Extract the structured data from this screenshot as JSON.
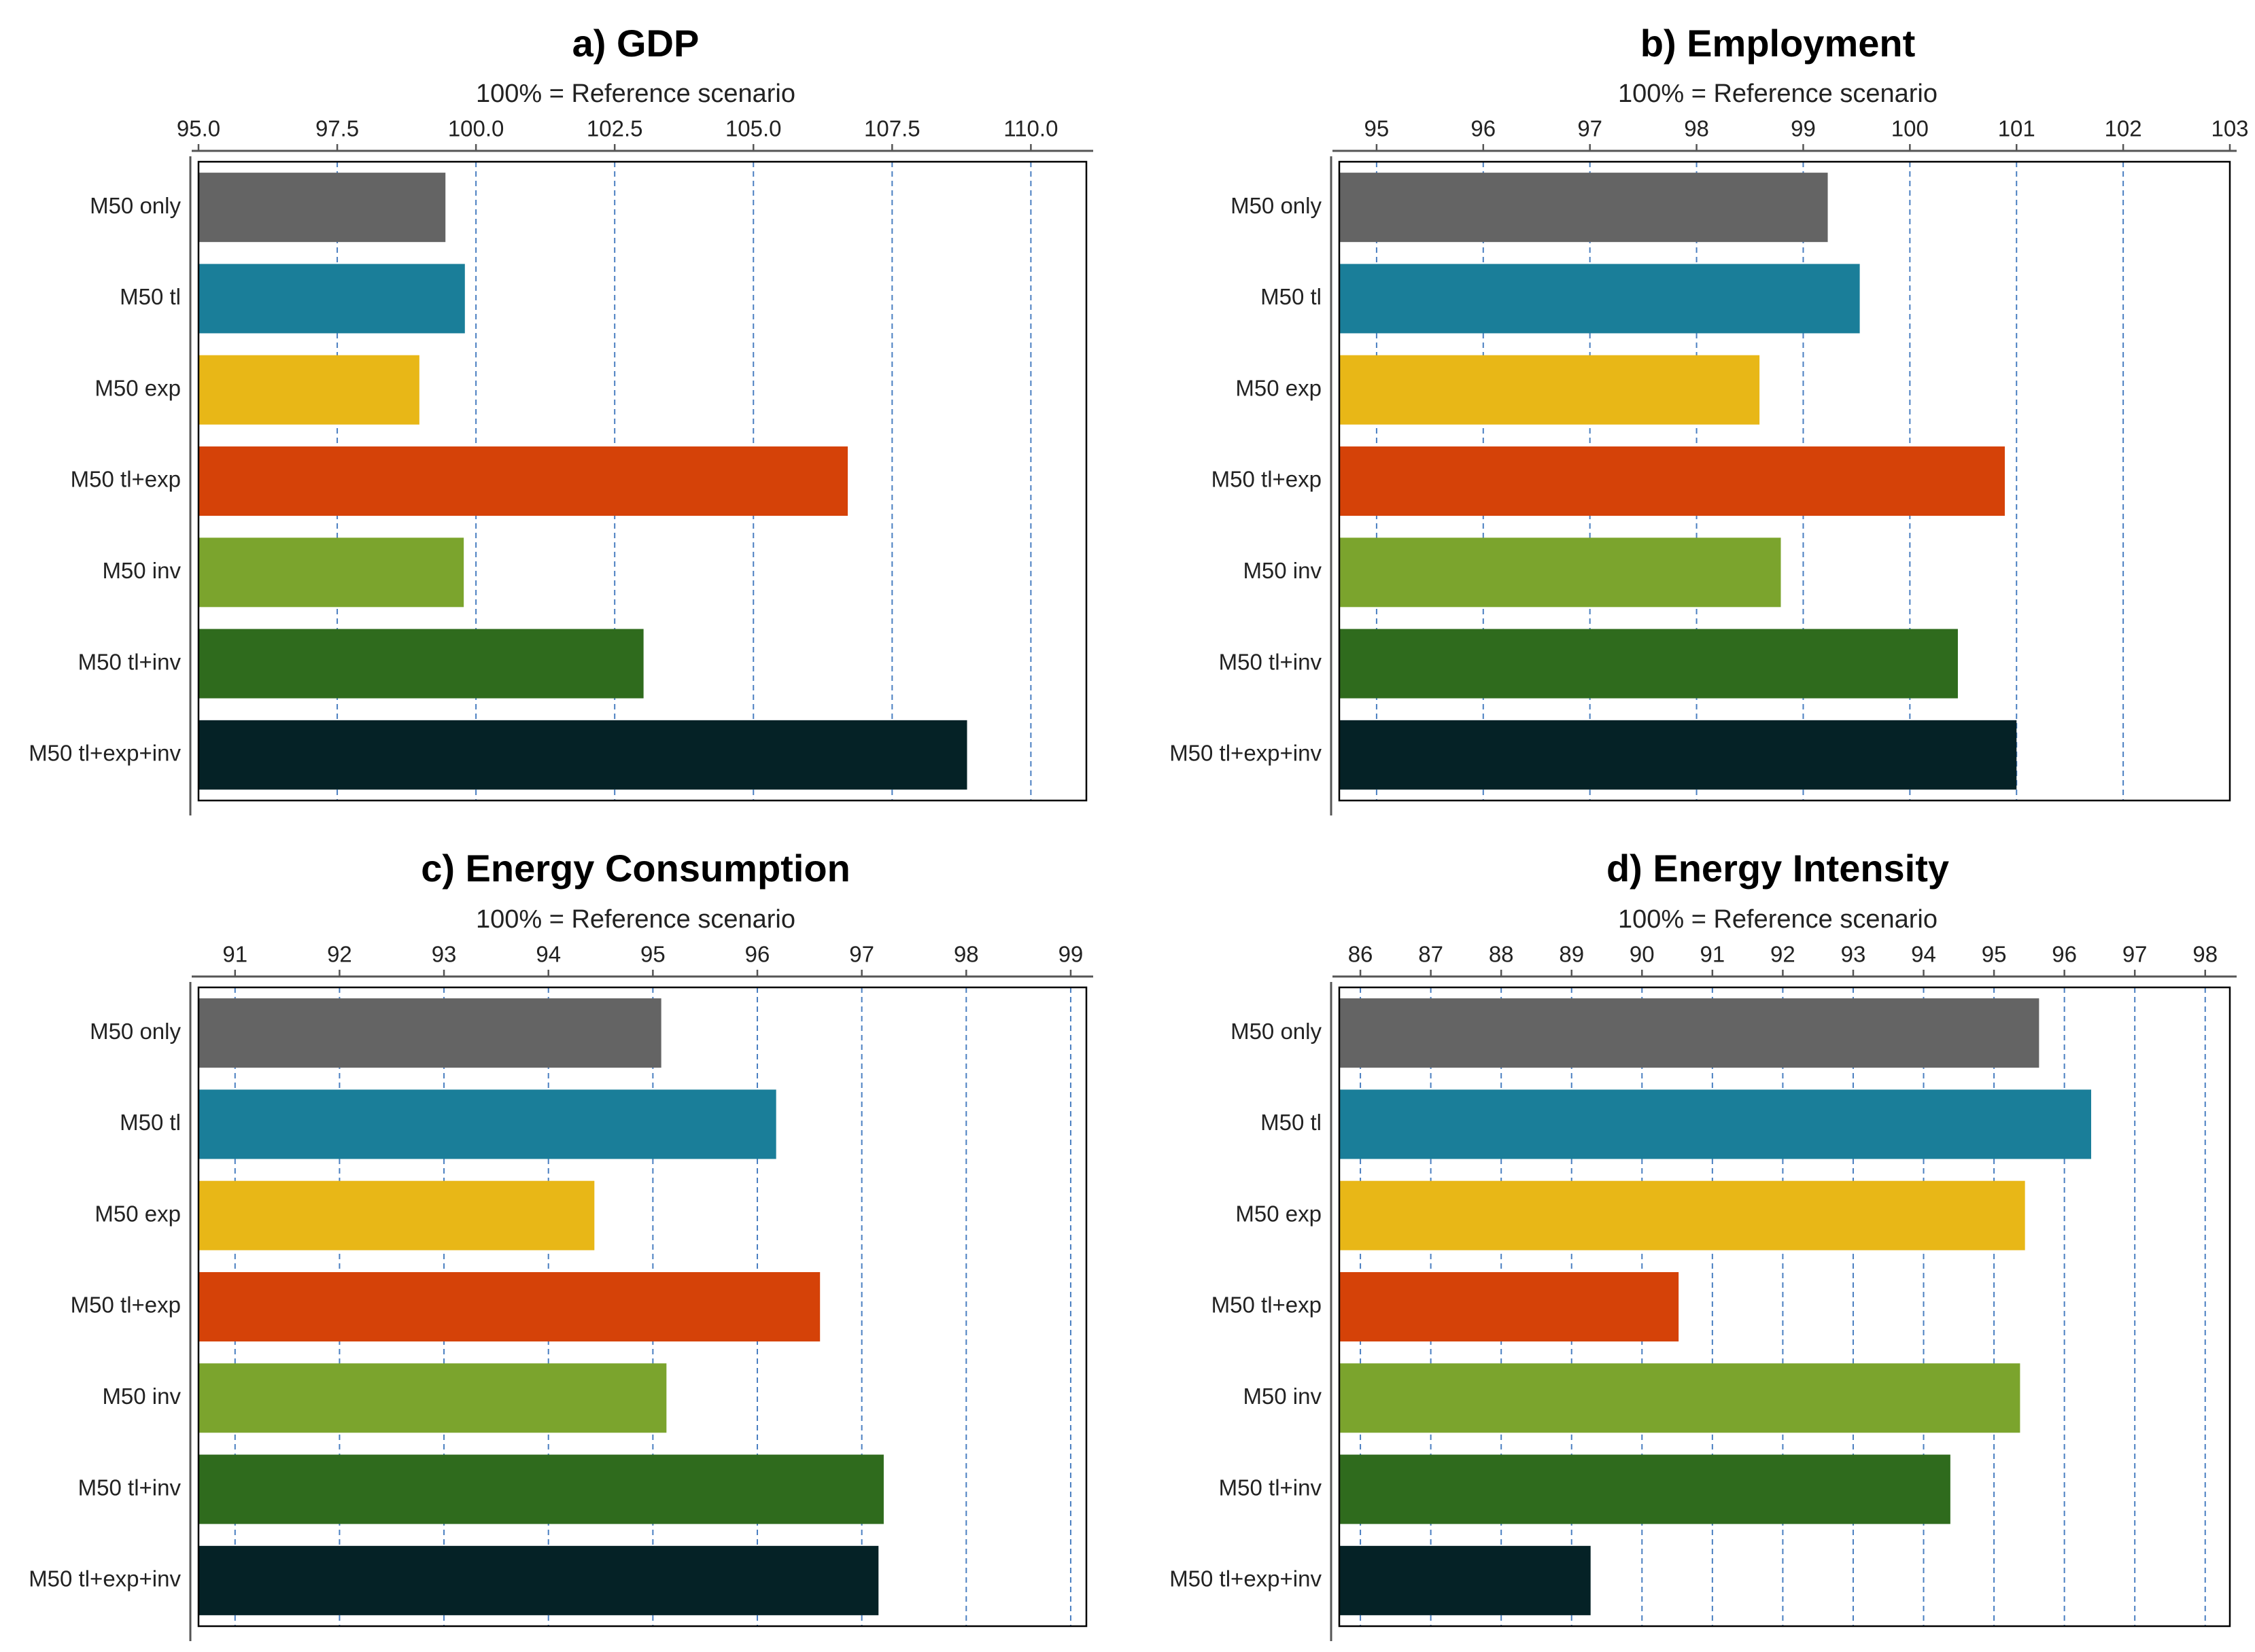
{
  "chart_data": [
    {
      "type": "bar",
      "orientation": "horizontal",
      "title": "a) GDP",
      "xlabel": "100% = Reference scenario",
      "xlim": [
        95.0,
        111.0
      ],
      "ticks": [
        "95.0",
        "97.5",
        "100.0",
        "102.5",
        "105.0",
        "107.5",
        "110.0"
      ],
      "categories": [
        "M50 only",
        "M50 tl",
        "M50 exp",
        "M50 tl+exp",
        "M50 inv",
        "M50 tl+inv",
        "M50 tl+exp+inv"
      ],
      "values": [
        99.45,
        99.8,
        98.98,
        106.7,
        99.78,
        103.02,
        108.85
      ],
      "colors": [
        "#646464",
        "#1a7e99",
        "#e8b717",
        "#d54208",
        "#7ba42d",
        "#2f6b1d",
        "#052226"
      ]
    },
    {
      "type": "bar",
      "orientation": "horizontal",
      "title": "b) Employment",
      "xlabel": "100% = Reference scenario",
      "xlim": [
        94.65,
        103.0
      ],
      "ticks": [
        "95",
        "96",
        "97",
        "98",
        "99",
        "100",
        "101",
        "102",
        "103"
      ],
      "categories": [
        "M50 only",
        "M50 tl",
        "M50 exp",
        "M50 tl+exp",
        "M50 inv",
        "M50 tl+inv",
        "M50 tl+exp+inv"
      ],
      "values": [
        99.23,
        99.53,
        98.59,
        100.89,
        98.79,
        100.45,
        101.0
      ],
      "colors": [
        "#646464",
        "#1a7e99",
        "#e8b717",
        "#d54208",
        "#7ba42d",
        "#2f6b1d",
        "#052226"
      ]
    },
    {
      "type": "bar",
      "orientation": "horizontal",
      "title": "c) Energy Consumption",
      "xlabel": "100% = Reference scenario",
      "xlim": [
        90.65,
        99.15
      ],
      "ticks": [
        "91",
        "92",
        "93",
        "94",
        "95",
        "96",
        "97",
        "98",
        "99"
      ],
      "categories": [
        "M50 only",
        "M50 tl",
        "M50 exp",
        "M50 tl+exp",
        "M50 inv",
        "M50 tl+inv",
        "M50 tl+exp+inv"
      ],
      "values": [
        95.08,
        96.18,
        94.44,
        96.6,
        95.13,
        97.21,
        97.16
      ],
      "colors": [
        "#646464",
        "#1a7e99",
        "#e8b717",
        "#d54208",
        "#7ba42d",
        "#2f6b1d",
        "#052226"
      ]
    },
    {
      "type": "bar",
      "orientation": "horizontal",
      "title": "d) Energy Intensity",
      "xlabel": "100% = Reference scenario",
      "xlim": [
        85.7,
        98.35
      ],
      "ticks": [
        "86",
        "87",
        "88",
        "89",
        "90",
        "91",
        "92",
        "93",
        "94",
        "95",
        "96",
        "97",
        "98"
      ],
      "categories": [
        "M50 only",
        "M50 tl",
        "M50 exp",
        "M50 tl+exp",
        "M50 inv",
        "M50 tl+inv",
        "M50 tl+exp+inv"
      ],
      "values": [
        95.64,
        96.38,
        95.44,
        90.52,
        95.37,
        94.38,
        89.27
      ],
      "colors": [
        "#646464",
        "#1a7e99",
        "#e8b717",
        "#d54208",
        "#7ba42d",
        "#2f6b1d",
        "#052226"
      ]
    }
  ]
}
